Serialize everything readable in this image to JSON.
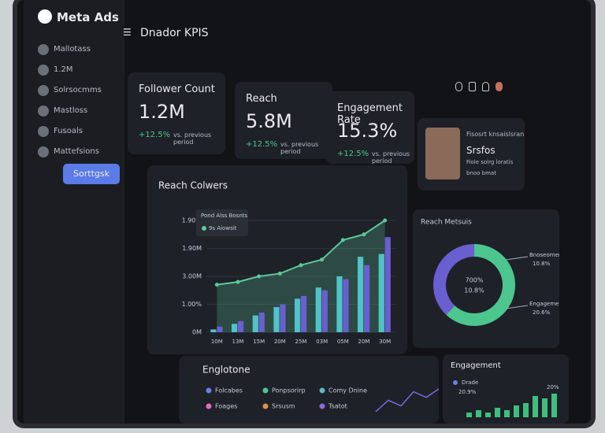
{
  "brand": "Meta Ads",
  "header": {
    "title": "Dnador KPIS"
  },
  "sidebar": {
    "items": [
      "Mallotass",
      "1.2M",
      "Solrsocmms",
      "Mastloss",
      "Fusoals",
      "Mattefsions"
    ],
    "button": "Sorttgsk"
  },
  "kpis": [
    {
      "label": "Follower Count",
      "value": "1.2M",
      "change": "+12.5%",
      "note": "vs. previous period"
    },
    {
      "label": "Reach",
      "value": "5.8M",
      "change": "+12.5%",
      "note": "vs. previous period"
    },
    {
      "label": "Engagement Rate",
      "value": "15.3%",
      "change": "+12.5%",
      "note": "vs. previous period"
    }
  ],
  "profile": {
    "title": "Fisosrt knsaislsran",
    "name": "Srsfos",
    "line1": "Fiole solrg loratis",
    "line2": "bnoo bmat"
  },
  "reach_chart": {
    "type": "bar_line",
    "title": "Reach Colwers",
    "tooltip": {
      "title": "Pond Alss Bosnts",
      "label": "9s Aiowsit"
    },
    "categories": [
      "10M",
      "13M",
      "15M",
      "20M",
      "25M",
      "03M",
      "05M",
      "20M",
      "30M"
    ],
    "ylim": [
      0,
      4
    ],
    "yticks": [
      {
        "value": 0,
        "label": "0M"
      },
      {
        "value": 1,
        "label": "1.00%"
      },
      {
        "value": 2,
        "label": "3.00M"
      },
      {
        "value": 3,
        "label": "1.90M"
      },
      {
        "value": 4,
        "label": "1.90%"
      }
    ],
    "line": {
      "color": "#5cc99a",
      "values": [
        1.7,
        1.8,
        2.0,
        2.1,
        2.4,
        2.6,
        3.3,
        3.5,
        4.0
      ]
    },
    "series": [
      {
        "color": "#4fc3c8",
        "values": [
          0.1,
          0.3,
          0.6,
          0.9,
          1.2,
          1.6,
          2.0,
          2.7,
          2.8
        ]
      },
      {
        "color": "#6a5fd0",
        "values": [
          0.2,
          0.4,
          0.7,
          1.0,
          1.3,
          1.5,
          1.9,
          2.4,
          3.4
        ]
      }
    ],
    "grid": true
  },
  "donut": {
    "type": "pie",
    "title": "Reach Metsuis",
    "center": [
      "700%",
      "10.8%"
    ],
    "annotations": [
      {
        "name": "Bnoseoment",
        "text": "10.8%"
      },
      {
        "name": "Engagement",
        "text": "20.6%"
      }
    ],
    "values": [
      62,
      38
    ],
    "colors": [
      "#4cc58f",
      "#6a5fd0"
    ]
  },
  "bottom": {
    "title": "Englotone",
    "legend": [
      {
        "name": "Folcabes",
        "color": "#6a7fe0"
      },
      {
        "name": "Ponpsorirp",
        "color": "#4cc58f"
      },
      {
        "name": "Comy Dnine",
        "color": "#5ab8c0"
      },
      {
        "name": "Foages",
        "color": "#e070b8"
      },
      {
        "name": "Srsusm",
        "color": "#e0904a"
      },
      {
        "name": "Tsatot",
        "color": "#8a6ae0"
      }
    ],
    "line": {
      "color": "#7a6ae0",
      "values": [
        0.2,
        0.6,
        0.4,
        0.9,
        0.7,
        1.0
      ]
    }
  },
  "engagement": {
    "title": "Engagement",
    "legend": "Drade",
    "annotations": [
      "20.9%",
      "20%"
    ],
    "color": "#3fbf7f",
    "values": [
      0.2,
      0.3,
      0.2,
      0.4,
      0.3,
      0.5,
      0.6,
      0.9,
      0.8,
      1.0
    ]
  }
}
